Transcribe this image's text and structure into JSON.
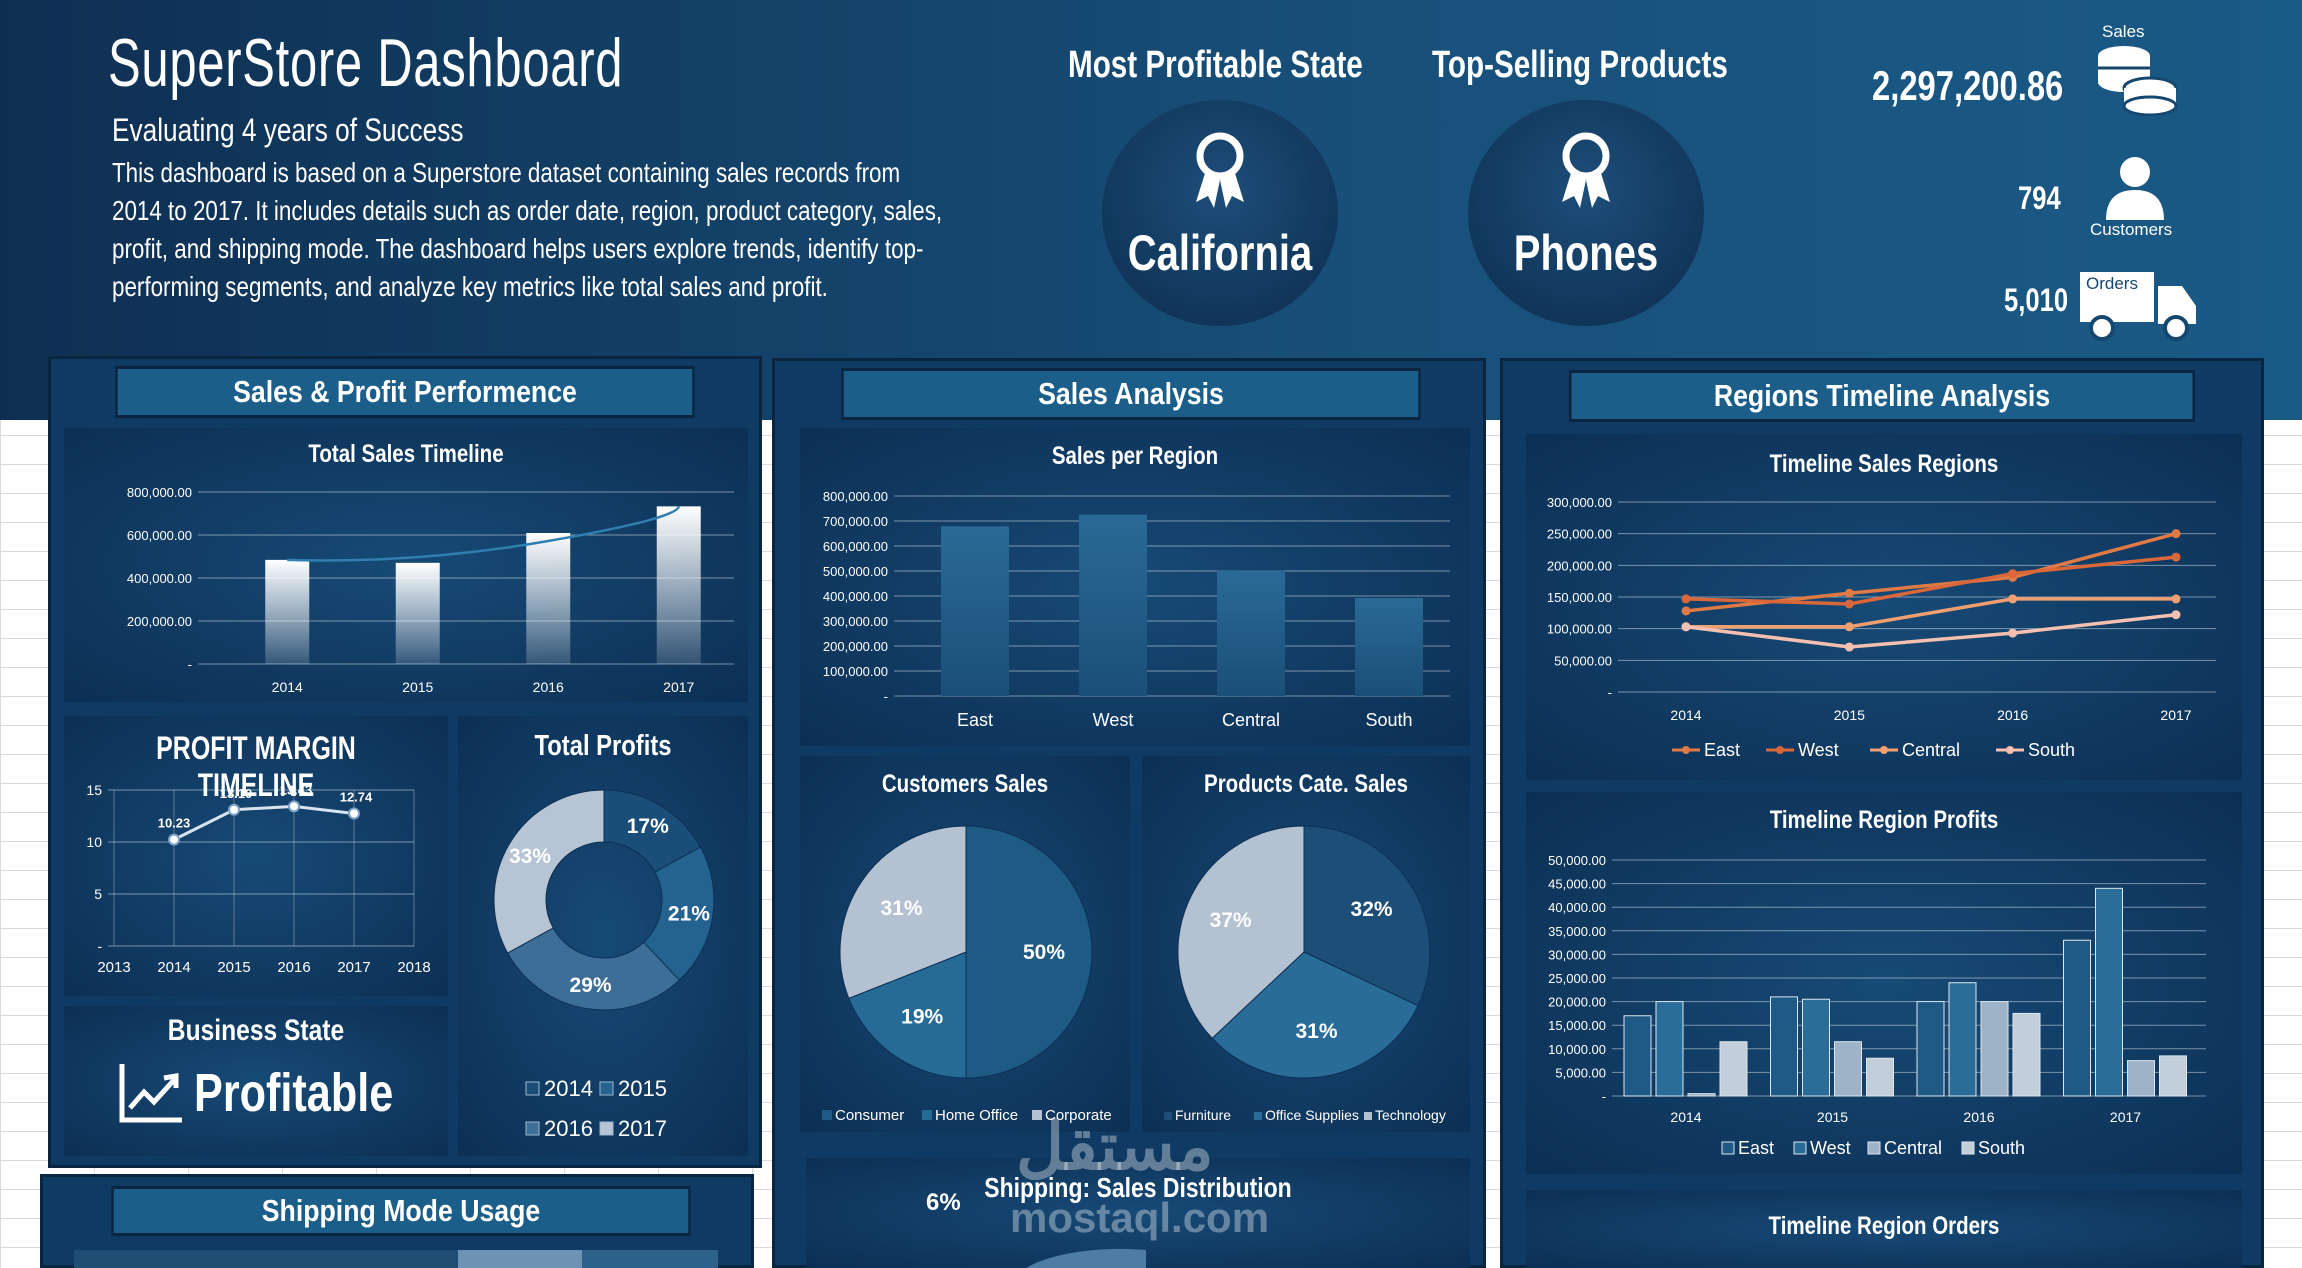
{
  "header": {
    "title": "SuperStore Dashboard",
    "subtitle": "Evaluating 4 years of Success",
    "description_lines": [
      "This dashboard is based on a Superstore dataset containing sales records from",
      "2014 to 2017. It includes details such as order date, region, product category, sales,",
      "profit, and shipping mode. The dashboard helps users explore trends, identify top-",
      "performing segments, and analyze key metrics like total sales and profit."
    ]
  },
  "highlights": {
    "state_label": "Most Profitable State",
    "state_value": "California",
    "product_label": "Top-Selling Products",
    "product_value": "Phones"
  },
  "kpis": {
    "sales_label": "Sales",
    "sales_value": "2,297,200.86",
    "customers_label": "Customers",
    "customers_value": "794",
    "orders_label": "Orders",
    "orders_value": "5,010"
  },
  "sections": {
    "sales_profit": "Sales & Profit Performence",
    "sales_analysis": "Sales Analysis",
    "regions_timeline": "Regions Timeline Analysis",
    "shipping_mode": "Shipping Mode Usage"
  },
  "business_state": {
    "title": "Business State",
    "value": "Profitable"
  },
  "watermark": {
    "arabic": "مستقل",
    "latin": "mostaql.com"
  },
  "colors": {
    "hero": "#16476f",
    "panel": "#0f3a63",
    "accent_east": "#e07a45",
    "accent_west": "#d9673a",
    "accent_central": "#f0a070",
    "accent_south": "#f5c0b0"
  },
  "chart_data": [
    {
      "id": "total_sales_timeline",
      "type": "bar",
      "title": "Total Sales Timeline",
      "categories": [
        "2014",
        "2015",
        "2016",
        "2017"
      ],
      "values": [
        484247.5,
        470532.51,
        609205.6,
        733215.26
      ],
      "y_ticks": [
        "800,000.00",
        "600,000.00",
        "400,000.00",
        "200,000.00",
        "-"
      ],
      "ylim": [
        0,
        800000
      ],
      "trendline": true
    },
    {
      "id": "profit_margin_timeline",
      "type": "line",
      "title": "PROFIT MARGIN TIMELINE",
      "x": [
        "2014",
        "2015",
        "2016",
        "2017"
      ],
      "x_ticks": [
        "2013",
        "2014",
        "2015",
        "2016",
        "2017",
        "2018"
      ],
      "values": [
        10.23,
        13.1,
        13.43,
        12.74
      ],
      "labels": [
        "10.23",
        "13.10",
        "13.43",
        "12.74"
      ],
      "y_ticks": [
        "15",
        "10",
        "5",
        "-"
      ],
      "ylim": [
        0,
        15
      ]
    },
    {
      "id": "total_profits",
      "type": "pie",
      "title": "Total Profits",
      "categories": [
        "2014",
        "2015",
        "2016",
        "2017"
      ],
      "values": [
        17,
        21,
        29,
        33
      ],
      "labels": [
        "17%",
        "21%",
        "29%",
        "33%"
      ],
      "legend": [
        "2014",
        "2015",
        "2016",
        "2017"
      ]
    },
    {
      "id": "sales_per_region",
      "type": "bar",
      "title": "Sales per Region",
      "categories": [
        "East",
        "West",
        "Central",
        "South"
      ],
      "values": [
        678781,
        725458,
        501240,
        391722
      ],
      "y_ticks": [
        "800,000.00",
        "700,000.00",
        "600,000.00",
        "500,000.00",
        "400,000.00",
        "300,000.00",
        "200,000.00",
        "100,000.00",
        "-"
      ],
      "ylim": [
        0,
        800000
      ]
    },
    {
      "id": "customers_sales",
      "type": "pie",
      "title": "Customers Sales",
      "categories": [
        "Consumer",
        "Home Office",
        "Corporate"
      ],
      "values": [
        50,
        19,
        31
      ],
      "labels": [
        "50%",
        "19%",
        "31%"
      ],
      "legend": [
        "Consumer",
        "Home Office",
        "Corporate"
      ]
    },
    {
      "id": "products_cate_sales",
      "type": "pie",
      "title": "Products Cate. Sales",
      "categories": [
        "Furniture",
        "Office Supplies",
        "Technology"
      ],
      "values": [
        32,
        31,
        37
      ],
      "labels": [
        "32%",
        "31%",
        "37%"
      ],
      "legend": [
        "Furniture",
        "Office Supplies",
        "Technology"
      ]
    },
    {
      "id": "timeline_sales_regions",
      "type": "line",
      "title": "Timeline Sales Regions",
      "x": [
        "2014",
        "2015",
        "2016",
        "2017"
      ],
      "series": [
        {
          "name": "East",
          "values": [
            128000,
            156000,
            181000,
            250000
          ]
        },
        {
          "name": "West",
          "values": [
            147000,
            139000,
            187000,
            213000
          ]
        },
        {
          "name": "Central",
          "values": [
            103000,
            103000,
            147000,
            147000
          ]
        },
        {
          "name": "South",
          "values": [
            103000,
            71000,
            93000,
            122000
          ]
        }
      ],
      "y_ticks": [
        "300,000.00",
        "250,000.00",
        "200,000.00",
        "150,000.00",
        "100,000.00",
        "50,000.00",
        "-"
      ],
      "ylim": [
        0,
        300000
      ],
      "legend": [
        "East",
        "West",
        "Central",
        "South"
      ]
    },
    {
      "id": "timeline_region_profits",
      "type": "bar",
      "title": "Timeline Region Profits",
      "categories": [
        "2014",
        "2015",
        "2016",
        "2017"
      ],
      "series": [
        {
          "name": "East",
          "values": [
            17000,
            21000,
            20000,
            33000
          ]
        },
        {
          "name": "West",
          "values": [
            20000,
            20500,
            24000,
            44000
          ]
        },
        {
          "name": "Central",
          "values": [
            500,
            11500,
            20000,
            7500
          ]
        },
        {
          "name": "South",
          "values": [
            11500,
            8000,
            17500,
            8500
          ]
        }
      ],
      "y_ticks": [
        "50,000.00",
        "45,000.00",
        "40,000.00",
        "35,000.00",
        "30,000.00",
        "25,000.00",
        "20,000.00",
        "15,000.00",
        "10,000.00",
        "5,000.00",
        "-"
      ],
      "ylim": [
        0,
        50000
      ],
      "legend": [
        "East",
        "West",
        "Central",
        "South"
      ]
    },
    {
      "id": "shipping_sales_distribution",
      "type": "pie",
      "title": "Shipping: Sales Distribution",
      "labels": [
        "6%"
      ]
    },
    {
      "id": "timeline_region_orders",
      "type": "bar",
      "title": "Timeline Region Orders"
    }
  ]
}
